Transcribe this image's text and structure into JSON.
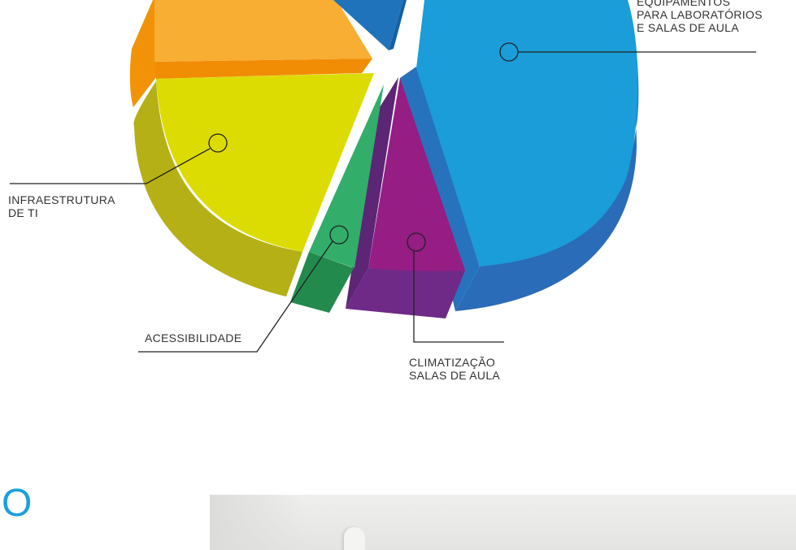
{
  "chart_data": {
    "type": "pie",
    "title": "",
    "slices": [
      {
        "id": "equip",
        "label": "EQUIPAMENTOS\nPARA LABORATÓRIOS\nE SALAS DE AULA",
        "value": 42,
        "color": "#1a9dd9"
      },
      {
        "id": "clima",
        "label": "CLIMATIZAÇÃO\nSALAS DE AULA",
        "value": 7,
        "color": "#951d84"
      },
      {
        "id": "acess",
        "label": "ACESSIBILIDADE",
        "value": 3,
        "color": "#33ad6a"
      },
      {
        "id": "infra",
        "label": "INFRAESTRUTURA\nDE TI",
        "value": 24,
        "color": "#dcdc03"
      },
      {
        "id": "orange",
        "label": "",
        "value": 18,
        "color": "#f8ad33"
      },
      {
        "id": "blue-small",
        "label": "",
        "value": 6,
        "color": "#1e73bb"
      }
    ]
  },
  "footer": {
    "letter": "O"
  }
}
